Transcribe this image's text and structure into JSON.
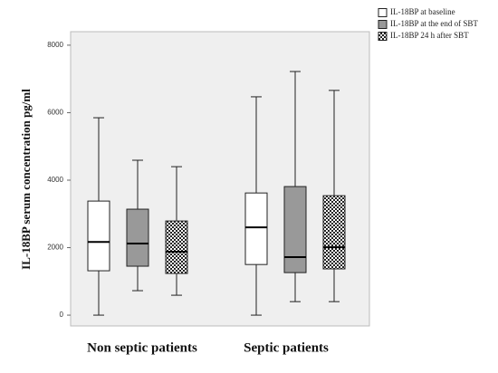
{
  "chart_data": {
    "type": "box",
    "y_label": "IL-18BP serum concentration pg/ml",
    "categories": [
      "Non septic patients",
      "Septic patients"
    ],
    "series": [
      {
        "name": "IL-18BP at baseline",
        "color": "#ffffff",
        "min": [
          0,
          0
        ],
        "q1": [
          1315,
          1500
        ],
        "median": [
          2170,
          2600
        ],
        "q3": [
          3380,
          3620
        ],
        "max": [
          5850,
          6470
        ]
      },
      {
        "name": "IL-18BP at the end of SBT",
        "color": "#999999",
        "min": [
          725,
          400
        ],
        "q1": [
          1450,
          1260
        ],
        "median": [
          2120,
          1720
        ],
        "q3": [
          3140,
          3810
        ],
        "max": [
          4590,
          7220
        ]
      },
      {
        "name": "IL-18BP 24 h after SBT",
        "color": "#ffffff",
        "pattern": "checker",
        "min": [
          590,
          400
        ],
        "q1": [
          1235,
          1370
        ],
        "median": [
          1880,
          2010
        ],
        "q3": [
          2790,
          3540
        ],
        "max": [
          4400,
          6660
        ]
      }
    ],
    "ylim": [
      -320,
      8400
    ],
    "yticks": [
      0,
      2000,
      4000,
      6000,
      8000
    ],
    "background": "#efefef",
    "legend": "top-right"
  }
}
